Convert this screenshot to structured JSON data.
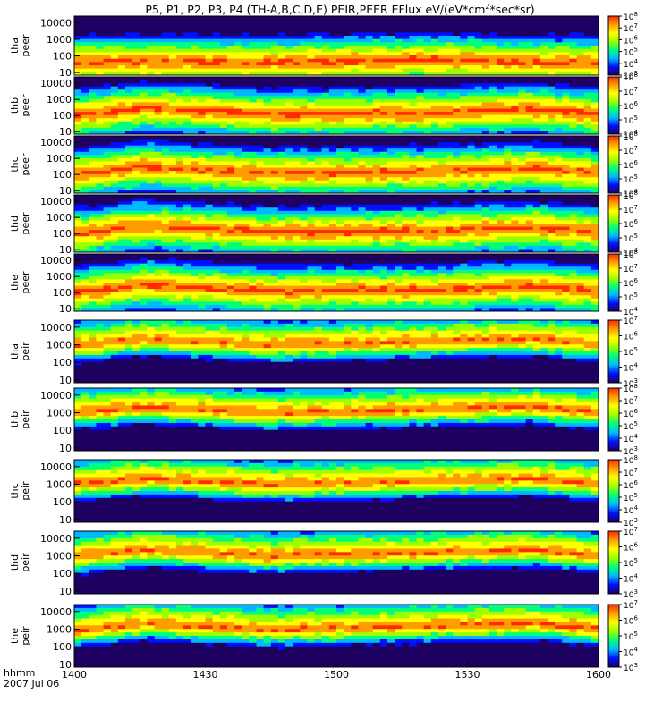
{
  "chart_data": {
    "type": "heatmap",
    "title": "P5, P1, P2, P3, P4 (TH-A,B,C,D,E) PEIR,PEER EFlux eV/(eV*cm^2*sec*sr)",
    "xlabel": "hhmm",
    "date_label": "2007 Jul 06",
    "x_ticks": [
      "1400",
      "1430",
      "1500",
      "1530",
      "1600"
    ],
    "xlim": [
      "14:00",
      "16:00"
    ],
    "y_scale": "log",
    "y_ticks": [
      "10",
      "100",
      "1000",
      "10000"
    ],
    "ylim": [
      7,
      25000
    ],
    "colorbar_scale": "log",
    "colormap": [
      "#1e0060",
      "#0010ff",
      "#00b8ff",
      "#00ff7a",
      "#9cff00",
      "#ffff00",
      "#ff9d00",
      "#ff2a00"
    ],
    "panels": [
      {
        "id": "tha-peer",
        "line1": "tha",
        "line2": "peer",
        "cbar": [
          3,
          8
        ],
        "band": [
          [
            "14:00",
            40
          ],
          [
            "14:16",
            45
          ],
          [
            "14:45",
            40
          ],
          [
            "15:23",
            60
          ],
          [
            "15:45",
            40
          ],
          [
            "16:00",
            40
          ]
        ]
      },
      {
        "id": "thb-peer",
        "line1": "thb",
        "line2": "peer",
        "cbar": [
          4,
          8
        ],
        "band": [
          [
            "14:00",
            100
          ],
          [
            "14:16",
            300
          ],
          [
            "14:45",
            120
          ],
          [
            "15:23",
            150
          ],
          [
            "15:45",
            250
          ],
          [
            "16:00",
            120
          ]
        ]
      },
      {
        "id": "thc-peer",
        "line1": "thc",
        "line2": "peer",
        "cbar": [
          4,
          8
        ],
        "band": [
          [
            "14:00",
            100
          ],
          [
            "14:16",
            300
          ],
          [
            "14:45",
            120
          ],
          [
            "15:23",
            150
          ],
          [
            "15:45",
            250
          ],
          [
            "16:00",
            120
          ]
        ]
      },
      {
        "id": "thd-peer",
        "line1": "thd",
        "line2": "peer",
        "cbar": [
          4,
          8
        ],
        "band": [
          [
            "14:00",
            100
          ],
          [
            "14:16",
            300
          ],
          [
            "14:45",
            120
          ],
          [
            "15:23",
            150
          ],
          [
            "15:45",
            250
          ],
          [
            "16:00",
            120
          ]
        ]
      },
      {
        "id": "the-peer",
        "line1": "the",
        "line2": "peer",
        "cbar": [
          4,
          8
        ],
        "band": [
          [
            "14:00",
            100
          ],
          [
            "14:16",
            300
          ],
          [
            "14:45",
            120
          ],
          [
            "15:23",
            150
          ],
          [
            "15:45",
            250
          ],
          [
            "16:00",
            120
          ]
        ]
      },
      {
        "id": "tha-peir",
        "line1": "tha",
        "line2": "peir",
        "cbar": [
          3,
          7
        ],
        "band": [
          [
            "14:00",
            800
          ],
          [
            "14:16",
            2000
          ],
          [
            "14:45",
            900
          ],
          [
            "15:23",
            1500
          ],
          [
            "15:45",
            2000
          ],
          [
            "16:00",
            1000
          ]
        ]
      },
      {
        "id": "thb-peir",
        "line1": "thb",
        "line2": "peir",
        "cbar": [
          3,
          8
        ],
        "band": [
          [
            "14:00",
            1000
          ],
          [
            "14:16",
            2000
          ],
          [
            "14:45",
            900
          ],
          [
            "15:23",
            1500
          ],
          [
            "15:45",
            2000
          ],
          [
            "16:00",
            1000
          ]
        ]
      },
      {
        "id": "thc-peir",
        "line1": "thc",
        "line2": "peir",
        "cbar": [
          3,
          8
        ],
        "band": [
          [
            "14:00",
            1000
          ],
          [
            "14:16",
            2000
          ],
          [
            "14:45",
            900
          ],
          [
            "15:23",
            1500
          ],
          [
            "15:45",
            2000
          ],
          [
            "16:00",
            1000
          ]
        ]
      },
      {
        "id": "thd-peir",
        "line1": "thd",
        "line2": "peir",
        "cbar": [
          3,
          7
        ],
        "band": [
          [
            "14:00",
            800
          ],
          [
            "14:16",
            2000
          ],
          [
            "14:45",
            900
          ],
          [
            "15:23",
            1500
          ],
          [
            "15:45",
            2000
          ],
          [
            "16:00",
            1000
          ]
        ]
      },
      {
        "id": "the-peir",
        "line1": "the",
        "line2": "peir",
        "cbar": [
          3,
          7
        ],
        "band": [
          [
            "14:00",
            800
          ],
          [
            "14:16",
            2000
          ],
          [
            "14:45",
            900
          ],
          [
            "15:23",
            1500
          ],
          [
            "15:45",
            2000
          ],
          [
            "16:00",
            1000
          ]
        ]
      }
    ]
  }
}
